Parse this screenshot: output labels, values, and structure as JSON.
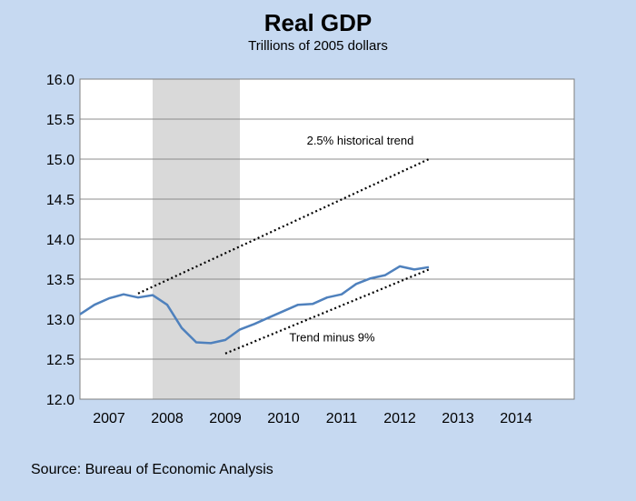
{
  "chart_data": {
    "type": "line",
    "title": "Real GDP",
    "subtitle": "Trillions of 2005 dollars",
    "xlabel": "",
    "ylabel": "",
    "xlim": [
      2006.5,
      2015.0
    ],
    "ylim": [
      12.0,
      16.0
    ],
    "y_ticks": [
      12.0,
      12.5,
      13.0,
      13.5,
      14.0,
      14.5,
      15.0,
      15.5,
      16.0
    ],
    "x_ticks": [
      {
        "year": 2007,
        "label": "2007"
      },
      {
        "year": 2008,
        "label": "2008"
      },
      {
        "year": 2009,
        "label": "2009"
      },
      {
        "year": 2010,
        "label": "2010"
      },
      {
        "year": 2011,
        "label": "2011"
      },
      {
        "year": 2012,
        "label": "2012"
      },
      {
        "year": 2013,
        "label": "2013"
      },
      {
        "year": 2014,
        "label": "2014"
      }
    ],
    "grid": "horizontal",
    "recession_shading": {
      "start": 2007.75,
      "end": 2009.25
    },
    "series": [
      {
        "style": "solid",
        "color": "#4f81bd",
        "x": [
          2006.5,
          2006.75,
          2007.0,
          2007.25,
          2007.5,
          2007.75,
          2008.0,
          2008.25,
          2008.5,
          2008.75,
          2009.0,
          2009.25,
          2009.5,
          2009.75,
          2010.0,
          2010.25,
          2010.5,
          2010.75,
          2011.0,
          2011.25,
          2011.5,
          2011.75,
          2012.0,
          2012.25,
          2012.5
        ],
        "values": [
          13.06,
          13.18,
          13.26,
          13.31,
          13.27,
          13.3,
          13.18,
          12.89,
          12.71,
          12.7,
          12.74,
          12.87,
          12.94,
          13.02,
          13.1,
          13.18,
          13.19,
          13.27,
          13.31,
          13.44,
          13.51,
          13.55,
          13.66,
          13.62,
          13.65
        ]
      },
      {
        "style": "dotted",
        "color": "#000000",
        "x": [
          2007.5,
          2012.5
        ],
        "values": [
          13.32,
          15.0
        ]
      },
      {
        "style": "dotted",
        "color": "#000000",
        "x": [
          2009.0,
          2012.5
        ],
        "values": [
          12.57,
          13.62
        ]
      }
    ],
    "annotations": [
      {
        "text": "2.5% historical trend",
        "x": 2010.4,
        "y": 15.18
      },
      {
        "text": "Trend minus 9%",
        "x": 2010.1,
        "y": 12.72
      }
    ]
  },
  "source": "Source: Bureau of Economic Analysis"
}
